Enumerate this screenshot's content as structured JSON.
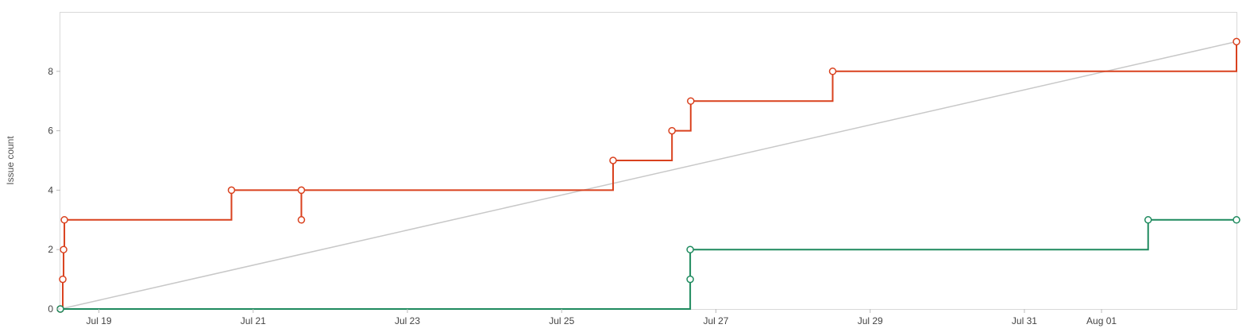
{
  "chart_data": {
    "type": "line",
    "title": "",
    "xlabel": "",
    "ylabel": "Issue count",
    "xlim": [
      "2023-07-18T12:00",
      "2023-08-02T18:00"
    ],
    "ylim": [
      0,
      10
    ],
    "y_ticks": [
      0,
      2,
      4,
      6,
      8
    ],
    "x_ticks": [
      {
        "date": "2023-07-19",
        "label": "Jul 19"
      },
      {
        "date": "2023-07-21",
        "label": "Jul 21"
      },
      {
        "date": "2023-07-23",
        "label": "Jul 23"
      },
      {
        "date": "2023-07-25",
        "label": "Jul 25"
      },
      {
        "date": "2023-07-27",
        "label": "Jul 27"
      },
      {
        "date": "2023-07-29",
        "label": "Jul 29"
      },
      {
        "date": "2023-07-31",
        "label": "Jul 31"
      },
      {
        "date": "2023-08-01",
        "label": "Aug 01"
      }
    ],
    "grid": false,
    "series": [
      {
        "color": "#d9411e",
        "step": true,
        "points": [
          {
            "x": "2023-07-18T12:00",
            "y": 0
          },
          {
            "x": "2023-07-18T12:45",
            "y": 1
          },
          {
            "x": "2023-07-18T13:00",
            "y": 2
          },
          {
            "x": "2023-07-18T13:15",
            "y": 3
          },
          {
            "x": "2023-07-20T17:15",
            "y": 4
          },
          {
            "x": "2023-07-21T15:00",
            "y": 3
          },
          {
            "x": "2023-07-21T15:00",
            "y": 4
          },
          {
            "x": "2023-07-25T16:00",
            "y": 5
          },
          {
            "x": "2023-07-26T10:20",
            "y": 6
          },
          {
            "x": "2023-07-26T16:10",
            "y": 7
          },
          {
            "x": "2023-07-28T12:20",
            "y": 8
          },
          {
            "x": "2023-08-02T18:00",
            "y": 9
          }
        ]
      },
      {
        "color": "#1e8a5e",
        "step": true,
        "points": [
          {
            "x": "2023-07-18T12:00",
            "y": 0
          },
          {
            "x": "2023-07-26T16:00",
            "y": 1
          },
          {
            "x": "2023-07-26T16:00",
            "y": 2
          },
          {
            "x": "2023-08-01T14:30",
            "y": 3
          },
          {
            "x": "2023-08-02T18:00",
            "y": 3
          }
        ]
      },
      {
        "color": "#c8c8c8",
        "step": false,
        "markers": false,
        "points": [
          {
            "x": "2023-07-18T12:00",
            "y": 0
          },
          {
            "x": "2023-08-02T18:00",
            "y": 9
          }
        ]
      }
    ]
  }
}
